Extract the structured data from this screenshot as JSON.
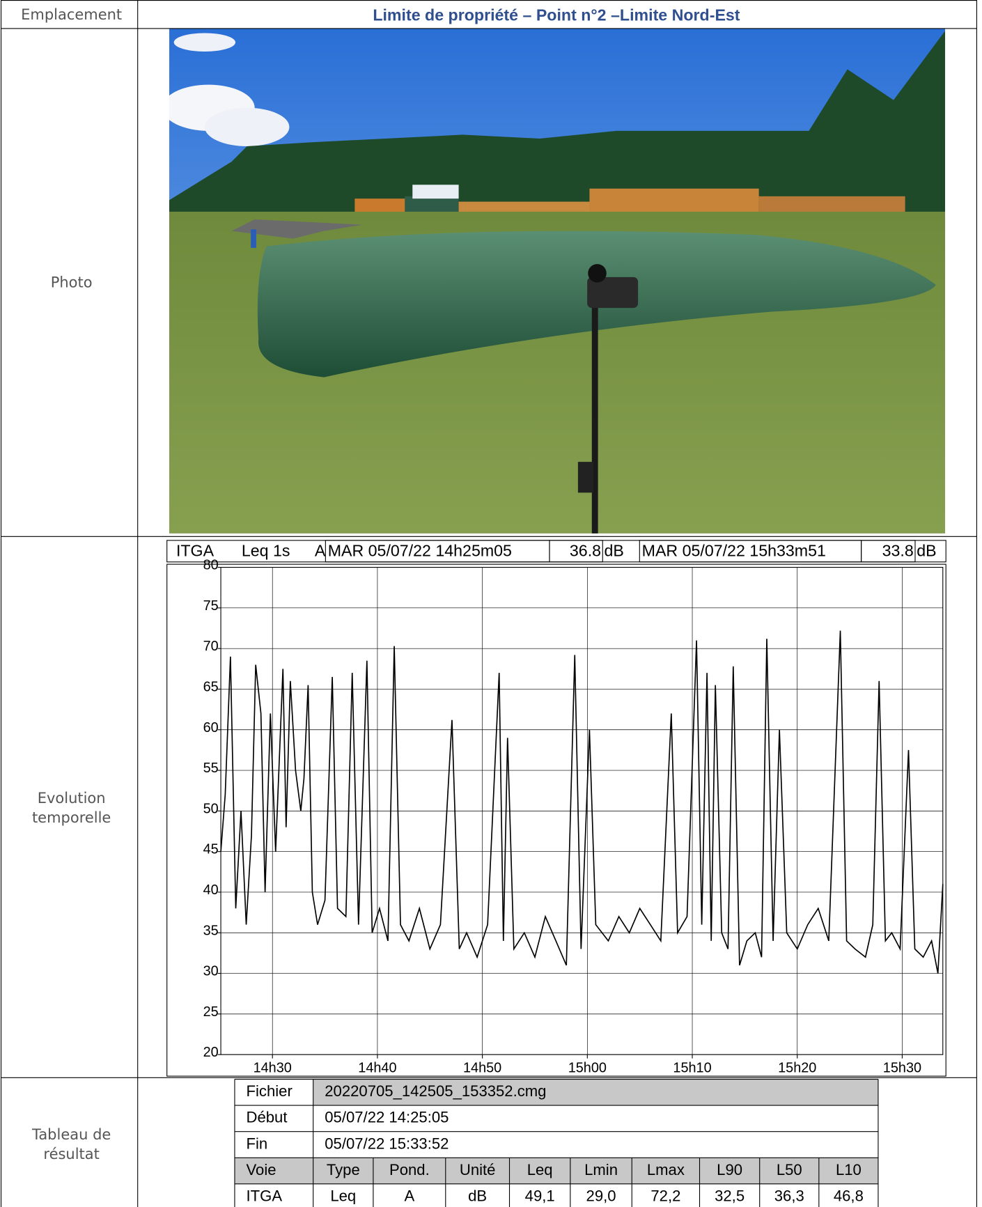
{
  "header": {
    "label": "Emplacement",
    "title": "Limite de propriété – Point n°2 –Limite Nord-Est"
  },
  "rows": {
    "photo": "Photo",
    "evolution": [
      "Evolution",
      "temporelle"
    ],
    "results": [
      "Tableau de",
      "résultat"
    ]
  },
  "chart_data": {
    "type": "line",
    "header": {
      "channel": "ITGA",
      "measure": "Leq 1s",
      "weighting": "A",
      "start": "MAR 05/07/22 14h25m05",
      "start_value": 36.8,
      "start_unit": "dB",
      "end": "MAR 05/07/22 15h33m51",
      "end_value": 33.8,
      "end_unit": "dB"
    },
    "x": [
      25.08,
      25.5,
      26.0,
      26.5,
      27,
      27.5,
      28,
      28.4,
      28.9,
      29.3,
      29.8,
      30.3,
      31.0,
      31.3,
      31.7,
      32.2,
      32.7,
      33.0,
      33.4,
      33.8,
      34.3,
      35,
      35.7,
      36.2,
      37,
      37.6,
      38.2,
      39.0,
      39.5,
      40.2,
      41,
      41.6,
      42.2,
      43,
      44,
      45,
      46,
      47.1,
      47.8,
      48.5,
      49.5,
      50.5,
      51.6,
      52.0,
      52.4,
      53,
      54,
      55,
      56,
      57,
      58,
      58.8,
      59.4,
      60.2,
      60.8,
      62,
      63,
      64,
      65,
      66,
      67,
      68.0,
      68.6,
      69.5,
      70.4,
      70.9,
      71.4,
      71.8,
      72.2,
      72.8,
      73.4,
      73.9,
      74.5,
      75.2,
      76,
      76.6,
      77.1,
      77.7,
      78.3,
      79,
      80,
      81,
      82,
      83,
      84.1,
      84.7,
      85.5,
      86.5,
      87.2,
      87.8,
      88.4,
      89,
      89.8,
      90.6,
      91.2,
      92,
      92.8,
      93.4,
      93.87
    ],
    "series": [
      {
        "color": "#000000",
        "values": [
          45,
          52,
          69,
          38,
          50,
          36,
          47,
          68,
          62,
          40,
          62,
          45,
          67.5,
          48,
          66,
          55,
          50,
          54,
          65.5,
          40,
          36,
          39,
          66.5,
          38,
          37,
          67,
          36,
          68.5,
          35,
          38,
          34,
          70.3,
          36,
          34,
          38,
          33,
          36,
          61.2,
          33,
          35,
          32,
          36,
          67,
          34,
          59,
          33,
          35,
          32,
          37,
          34,
          31,
          69.2,
          33,
          60,
          36,
          34,
          37,
          35,
          38,
          36,
          34,
          62,
          35,
          37,
          71,
          36,
          67,
          34,
          65.5,
          35,
          33,
          67.8,
          31,
          34,
          35,
          32,
          71.2,
          34,
          60,
          35,
          33,
          36,
          38,
          34,
          72.2,
          34,
          33,
          32,
          36,
          66,
          34,
          35,
          33,
          57.5,
          33,
          32,
          34,
          30,
          41
        ]
      }
    ],
    "xlim": [
      25.08,
      93.87
    ],
    "xticks": [
      {
        "value": 30,
        "label": "14h30"
      },
      {
        "value": 40,
        "label": "14h40"
      },
      {
        "value": 50,
        "label": "14h50"
      },
      {
        "value": 60,
        "label": "15h00"
      },
      {
        "value": 70,
        "label": "15h10"
      },
      {
        "value": 80,
        "label": "15h20"
      },
      {
        "value": 90,
        "label": "15h30"
      }
    ],
    "ylim": [
      20,
      80
    ],
    "yticks": [
      20,
      25,
      30,
      35,
      40,
      45,
      50,
      55,
      60,
      65,
      70,
      75,
      80
    ],
    "grid": true
  },
  "results": {
    "file_label": "Fichier",
    "file": "20220705_142505_153352.cmg",
    "start_label": "Début",
    "start": "05/07/22 14:25:05",
    "end_label": "Fin",
    "end": "05/07/22 15:33:52",
    "columns": [
      "Voie",
      "Type",
      "Pond.",
      "Unité",
      "Leq",
      "Lmin",
      "Lmax",
      "L90",
      "L50",
      "L10"
    ],
    "rows": [
      [
        "ITGA",
        "Leq",
        "A",
        "dB",
        "49,1",
        "29,0",
        "72,2",
        "32,5",
        "36,3",
        "46,8"
      ]
    ]
  }
}
